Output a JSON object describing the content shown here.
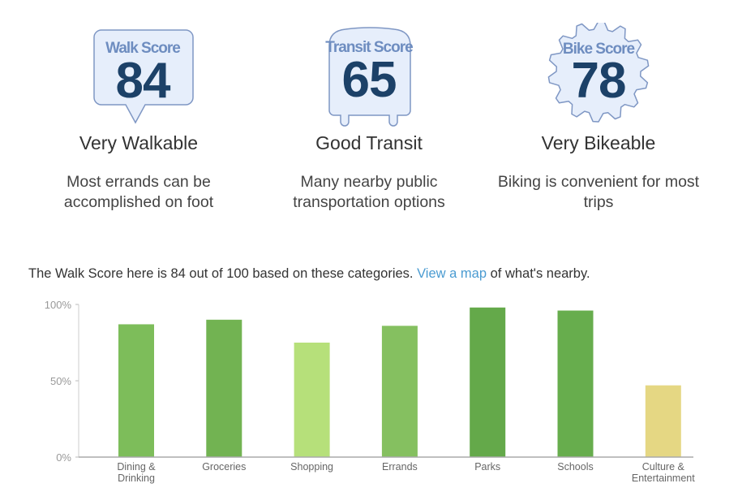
{
  "scores": [
    {
      "label": "Walk Score",
      "value": "84",
      "title": "Very Walkable",
      "description": "Most errands can be accomplished on foot"
    },
    {
      "label": "Transit Score",
      "value": "65",
      "title": "Good Transit",
      "description": "Many nearby public transportation options"
    },
    {
      "label": "Bike Score",
      "value": "78",
      "title": "Very Bikeable",
      "description": "Biking is convenient for most trips"
    }
  ],
  "summary": {
    "before": "The Walk Score here is 84 out of 100 based on these categories. ",
    "link": "View a map",
    "after": " of what's nearby."
  },
  "chart_data": {
    "type": "bar",
    "categories": [
      "Dining & Drinking",
      "Groceries",
      "Shopping",
      "Errands",
      "Parks",
      "Schools",
      "Culture & Entertainment"
    ],
    "values": [
      87,
      90,
      75,
      86,
      98,
      96,
      47
    ],
    "colors": [
      "#7dbd5a",
      "#72b352",
      "#b6e07a",
      "#85c060",
      "#64a94a",
      "#67ad4d",
      "#e5d783"
    ],
    "yticks": [
      "0%",
      "50%",
      "100%"
    ],
    "ytick_values": [
      0,
      50,
      100
    ],
    "ylim": [
      0,
      100
    ],
    "title": "",
    "xlabel": "",
    "ylabel": ""
  }
}
